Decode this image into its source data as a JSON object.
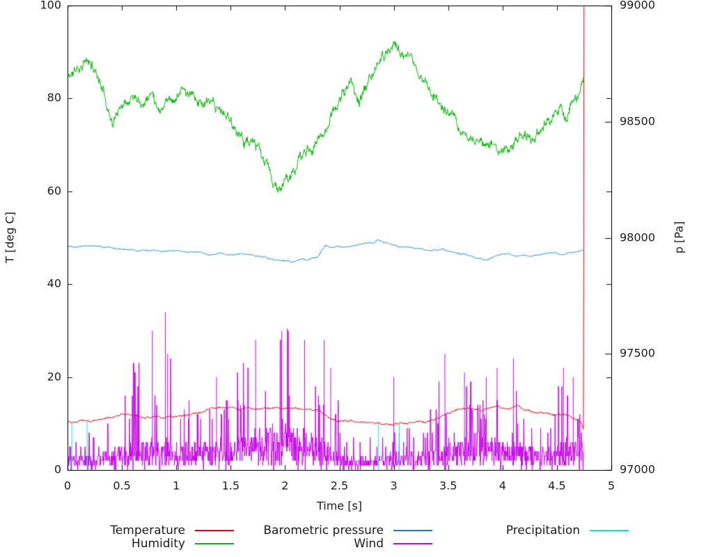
{
  "chart_data": {
    "type": "line",
    "title": "",
    "xlabel": "Time [s]",
    "ylabel": "T [deg C]",
    "y2label": "p [Pa]",
    "xlim": [
      0,
      5
    ],
    "ylim": [
      0,
      100
    ],
    "y2lim": [
      97000,
      99000
    ],
    "xticks": [
      0,
      0.5,
      1,
      1.5,
      2,
      2.5,
      3,
      3.5,
      4,
      4.5,
      5
    ],
    "xtick_labels": [
      "0",
      "0.5",
      "1",
      "1.5",
      "2",
      "2.5",
      "3",
      "3.5",
      "4",
      "4.5",
      "5"
    ],
    "yticks": [
      0,
      20,
      40,
      60,
      80,
      100
    ],
    "ytick_labels": [
      "0",
      "20",
      "40",
      "60",
      "80",
      "100"
    ],
    "y2ticks": [
      97000,
      97500,
      98000,
      98500,
      99000
    ],
    "y2tick_labels": [
      "97000",
      "97500",
      "98000",
      "98500",
      "99000"
    ],
    "grid": false,
    "legend_position": "below-plot, 3 columns 2 rows",
    "end_time": 4.745,
    "series": [
      {
        "name": "Temperature",
        "color": "#e60000",
        "axis": "y1",
        "style": "noisy-line",
        "noise": 0.18,
        "quantize": 0.125,
        "seed": 7,
        "keypoints": [
          [
            0,
            10.4
          ],
          [
            0.1,
            10.5
          ],
          [
            0.2,
            10.5
          ],
          [
            0.3,
            10.8
          ],
          [
            0.4,
            11.2
          ],
          [
            0.5,
            12.0
          ],
          [
            0.6,
            11.8
          ],
          [
            0.7,
            11.4
          ],
          [
            0.8,
            11.3
          ],
          [
            0.9,
            11.4
          ],
          [
            1.0,
            11.5
          ],
          [
            1.1,
            11.8
          ],
          [
            1.2,
            12.4
          ],
          [
            1.3,
            13.1
          ],
          [
            1.4,
            13.4
          ],
          [
            1.5,
            13.3
          ],
          [
            1.6,
            13.2
          ],
          [
            1.7,
            13.3
          ],
          [
            1.8,
            13.3
          ],
          [
            1.9,
            13.4
          ],
          [
            2.0,
            13.3
          ],
          [
            2.1,
            13.4
          ],
          [
            2.2,
            13.1
          ],
          [
            2.3,
            12.8
          ],
          [
            2.4,
            11.4
          ],
          [
            2.5,
            10.6
          ],
          [
            2.6,
            10.5
          ],
          [
            2.7,
            10.4
          ],
          [
            2.8,
            10.4
          ],
          [
            2.9,
            10.0
          ],
          [
            3.0,
            9.7
          ],
          [
            3.1,
            10.2
          ],
          [
            3.2,
            10.3
          ],
          [
            3.3,
            10.3
          ],
          [
            3.4,
            11.2
          ],
          [
            3.5,
            12.3
          ],
          [
            3.6,
            13.2
          ],
          [
            3.7,
            13.4
          ],
          [
            3.8,
            12.9
          ],
          [
            3.9,
            13.5
          ],
          [
            3.95,
            13.9
          ],
          [
            4.0,
            13.2
          ],
          [
            4.05,
            12.9
          ],
          [
            4.13,
            13.9
          ],
          [
            4.2,
            13.0
          ],
          [
            4.3,
            12.4
          ],
          [
            4.4,
            12.4
          ],
          [
            4.5,
            11.7
          ],
          [
            4.6,
            12.1
          ],
          [
            4.68,
            10.9
          ],
          [
            4.72,
            10.3
          ],
          [
            4.745,
            8.8
          ],
          [
            4.748,
            100
          ]
        ]
      },
      {
        "name": "Humidity",
        "color": "#00b400",
        "axis": "y1",
        "style": "noisy-line",
        "noise": 0.9,
        "quantize": 0.25,
        "seed": 11,
        "keypoints": [
          [
            0,
            84.5
          ],
          [
            0.05,
            85.5
          ],
          [
            0.1,
            86.5
          ],
          [
            0.15,
            88.3
          ],
          [
            0.2,
            87.3
          ],
          [
            0.28,
            85.3
          ],
          [
            0.35,
            80
          ],
          [
            0.42,
            74.5
          ],
          [
            0.48,
            78.5
          ],
          [
            0.55,
            80.5
          ],
          [
            0.63,
            81.5
          ],
          [
            0.7,
            80
          ],
          [
            0.78,
            81.3
          ],
          [
            0.85,
            78
          ],
          [
            0.92,
            80.3
          ],
          [
            1.0,
            80.3
          ],
          [
            1.05,
            82
          ],
          [
            1.12,
            80.5
          ],
          [
            1.2,
            79.5
          ],
          [
            1.3,
            78.5
          ],
          [
            1.4,
            77
          ],
          [
            1.5,
            75.3
          ],
          [
            1.57,
            72.5
          ],
          [
            1.65,
            71
          ],
          [
            1.72,
            70
          ],
          [
            1.8,
            66.5
          ],
          [
            1.85,
            64.5
          ],
          [
            1.9,
            61.5
          ],
          [
            1.94,
            59.8
          ],
          [
            2.0,
            62
          ],
          [
            2.06,
            63
          ],
          [
            2.13,
            67
          ],
          [
            2.2,
            68.5
          ],
          [
            2.28,
            70.5
          ],
          [
            2.35,
            72.5
          ],
          [
            2.45,
            77.5
          ],
          [
            2.52,
            80.5
          ],
          [
            2.6,
            83.5
          ],
          [
            2.68,
            79.5
          ],
          [
            2.75,
            82.5
          ],
          [
            2.82,
            85.5
          ],
          [
            2.9,
            89
          ],
          [
            2.96,
            91
          ],
          [
            3.0,
            92.3
          ],
          [
            3.05,
            90.5
          ],
          [
            3.12,
            88.5
          ],
          [
            3.2,
            86.5
          ],
          [
            3.3,
            83
          ],
          [
            3.4,
            80
          ],
          [
            3.5,
            76.5
          ],
          [
            3.55,
            75
          ],
          [
            3.62,
            73
          ],
          [
            3.7,
            71.5
          ],
          [
            3.78,
            70.5
          ],
          [
            3.85,
            69.5
          ],
          [
            3.9,
            70.5
          ],
          [
            3.97,
            67.8
          ],
          [
            4.05,
            69
          ],
          [
            4.12,
            71
          ],
          [
            4.2,
            73
          ],
          [
            4.28,
            71
          ],
          [
            4.37,
            73.8
          ],
          [
            4.45,
            76.5
          ],
          [
            4.53,
            77.7
          ],
          [
            4.58,
            75.2
          ],
          [
            4.65,
            78
          ],
          [
            4.7,
            80
          ],
          [
            4.745,
            84.5
          ]
        ]
      },
      {
        "name": "Barometric pressure",
        "color": "#0c7fd4",
        "axis": "y2",
        "style": "noisy-line",
        "noise": 2.5,
        "quantize": 1,
        "seed": 13,
        "keypoints": [
          [
            0,
            97966
          ],
          [
            0.2,
            97964
          ],
          [
            0.35,
            97960
          ],
          [
            0.5,
            97950
          ],
          [
            0.65,
            97946
          ],
          [
            0.8,
            97944
          ],
          [
            0.95,
            97942
          ],
          [
            1.1,
            97940
          ],
          [
            1.2,
            97936
          ],
          [
            1.3,
            97926
          ],
          [
            1.4,
            97932
          ],
          [
            1.5,
            97928
          ],
          [
            1.6,
            97932
          ],
          [
            1.7,
            97926
          ],
          [
            1.8,
            97920
          ],
          [
            1.9,
            97906
          ],
          [
            2.0,
            97900
          ],
          [
            2.05,
            97894
          ],
          [
            2.1,
            97900
          ],
          [
            2.15,
            97908
          ],
          [
            2.2,
            97904
          ],
          [
            2.3,
            97920
          ],
          [
            2.37,
            97968
          ],
          [
            2.45,
            97962
          ],
          [
            2.55,
            97960
          ],
          [
            2.65,
            97966
          ],
          [
            2.75,
            97974
          ],
          [
            2.86,
            97988
          ],
          [
            2.95,
            97974
          ],
          [
            3.05,
            97958
          ],
          [
            3.15,
            97962
          ],
          [
            3.25,
            97950
          ],
          [
            3.35,
            97944
          ],
          [
            3.45,
            97952
          ],
          [
            3.55,
            97936
          ],
          [
            3.65,
            97930
          ],
          [
            3.75,
            97914
          ],
          [
            3.86,
            97904
          ],
          [
            3.95,
            97926
          ],
          [
            4.05,
            97932
          ],
          [
            4.15,
            97922
          ],
          [
            4.25,
            97920
          ],
          [
            4.35,
            97928
          ],
          [
            4.45,
            97936
          ],
          [
            4.55,
            97926
          ],
          [
            4.65,
            97938
          ],
          [
            4.72,
            97948
          ],
          [
            4.745,
            97948
          ]
        ]
      },
      {
        "name": "Wind",
        "color": "#c400e8",
        "axis": "y1",
        "style": "spiky",
        "seed": 17,
        "baseline": [
          [
            0,
            2.5
          ],
          [
            0.3,
            2.5
          ],
          [
            0.45,
            3.5
          ],
          [
            0.6,
            4
          ],
          [
            0.9,
            5
          ],
          [
            1.1,
            4
          ],
          [
            1.3,
            4.5
          ],
          [
            1.5,
            5
          ],
          [
            1.7,
            6
          ],
          [
            1.85,
            8
          ],
          [
            2.0,
            7
          ],
          [
            2.15,
            6
          ],
          [
            2.3,
            5
          ],
          [
            2.45,
            4
          ],
          [
            2.55,
            2
          ],
          [
            2.8,
            2
          ],
          [
            3.0,
            2.5
          ],
          [
            3.2,
            2.5
          ],
          [
            3.4,
            4
          ],
          [
            3.6,
            5.5
          ],
          [
            3.8,
            6
          ],
          [
            4.0,
            5.5
          ],
          [
            4.2,
            4.5
          ],
          [
            4.4,
            4
          ],
          [
            4.6,
            4.5
          ],
          [
            4.745,
            5
          ]
        ],
        "amplitude": [
          [
            0,
            6
          ],
          [
            0.3,
            7
          ],
          [
            0.45,
            14
          ],
          [
            0.55,
            22
          ],
          [
            0.7,
            26
          ],
          [
            0.85,
            30
          ],
          [
            0.95,
            26
          ],
          [
            1.1,
            18
          ],
          [
            1.25,
            22
          ],
          [
            1.4,
            18
          ],
          [
            1.55,
            22
          ],
          [
            1.7,
            26
          ],
          [
            1.85,
            24
          ],
          [
            2.0,
            28
          ],
          [
            2.1,
            26
          ],
          [
            2.25,
            24
          ],
          [
            2.4,
            24
          ],
          [
            2.5,
            14
          ],
          [
            2.6,
            7
          ],
          [
            2.8,
            6
          ],
          [
            3.0,
            12
          ],
          [
            3.15,
            8
          ],
          [
            3.3,
            9
          ],
          [
            3.45,
            20
          ],
          [
            3.6,
            17
          ],
          [
            3.75,
            16
          ],
          [
            3.9,
            18
          ],
          [
            4.05,
            19
          ],
          [
            4.2,
            16
          ],
          [
            4.35,
            12
          ],
          [
            4.5,
            16
          ],
          [
            4.65,
            15
          ],
          [
            4.745,
            7
          ]
        ],
        "spikes": [
          [
            0.78,
            30
          ],
          [
            0.9,
            34
          ],
          [
            0.92,
            25
          ],
          [
            1.37,
            20
          ],
          [
            1.73,
            28
          ],
          [
            1.97,
            30
          ],
          [
            2.02,
            30.5
          ],
          [
            2.18,
            28
          ],
          [
            2.36,
            28
          ],
          [
            2.42,
            22
          ],
          [
            3.0,
            20
          ],
          [
            3.47,
            25
          ],
          [
            3.65,
            21
          ],
          [
            3.85,
            20
          ],
          [
            3.95,
            22
          ],
          [
            4.1,
            24
          ],
          [
            4.56,
            22
          ],
          [
            4.65,
            20
          ]
        ]
      },
      {
        "name": "Precipitation",
        "color": "#00e8e8",
        "axis": "y1",
        "style": "impulses",
        "events": [
          [
            0.04,
            10
          ],
          [
            0.18,
            10.5
          ],
          [
            2.86,
            10
          ],
          [
            3.05,
            10
          ]
        ]
      }
    ]
  }
}
